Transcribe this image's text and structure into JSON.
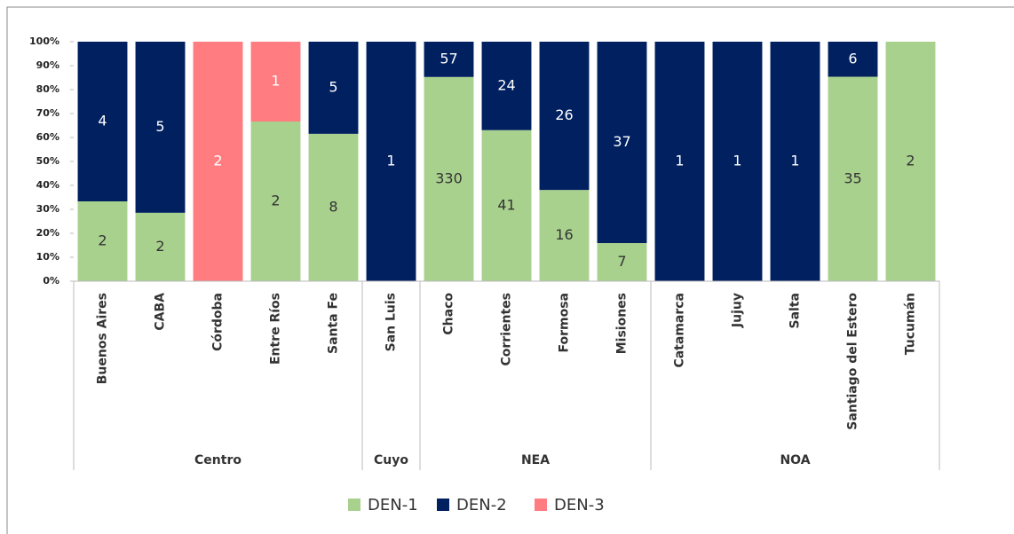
{
  "chart_data": {
    "type": "bar",
    "stacking": "percent",
    "categories": [
      "Buenos Aires",
      "CABA",
      "Córdoba",
      "Entre Ríos",
      "Santa Fe",
      "San Luis",
      "Chaco",
      "Corrientes",
      "Formosa",
      "Misiones",
      "Catamarca",
      "Jujuy",
      "Salta",
      "Santiago del Estero",
      "Tucumán"
    ],
    "groups": [
      {
        "label": "Centro",
        "span": 5
      },
      {
        "label": "Cuyo",
        "span": 1
      },
      {
        "label": "NEA",
        "span": 4
      },
      {
        "label": "NOA",
        "span": 5
      }
    ],
    "series": [
      {
        "name": "DEN-1",
        "color": "#a9d18e",
        "values": [
          2,
          2,
          null,
          2,
          8,
          null,
          330,
          41,
          16,
          7,
          null,
          null,
          null,
          35,
          2
        ]
      },
      {
        "name": "DEN-2",
        "color": "#002060",
        "values": [
          4,
          5,
          null,
          null,
          5,
          1,
          57,
          24,
          26,
          37,
          1,
          1,
          1,
          6,
          null
        ]
      },
      {
        "name": "DEN-3",
        "color": "#ff7c80",
        "values": [
          null,
          null,
          2,
          1,
          null,
          null,
          null,
          null,
          null,
          null,
          null,
          null,
          null,
          null,
          null
        ]
      }
    ],
    "ylim": [
      0,
      100
    ],
    "yticks": [
      {
        "value": 0,
        "label": "0%"
      },
      {
        "value": 10,
        "label": "10%"
      },
      {
        "value": 20,
        "label": "20%"
      },
      {
        "value": 30,
        "label": "30%"
      },
      {
        "value": 40,
        "label": "40%"
      },
      {
        "value": 50,
        "label": "50%"
      },
      {
        "value": 60,
        "label": "60%"
      },
      {
        "value": 70,
        "label": "70%"
      },
      {
        "value": 80,
        "label": "80%"
      },
      {
        "value": 90,
        "label": "90%"
      },
      {
        "value": 100,
        "label": "100%"
      }
    ],
    "legend": "bottom"
  }
}
